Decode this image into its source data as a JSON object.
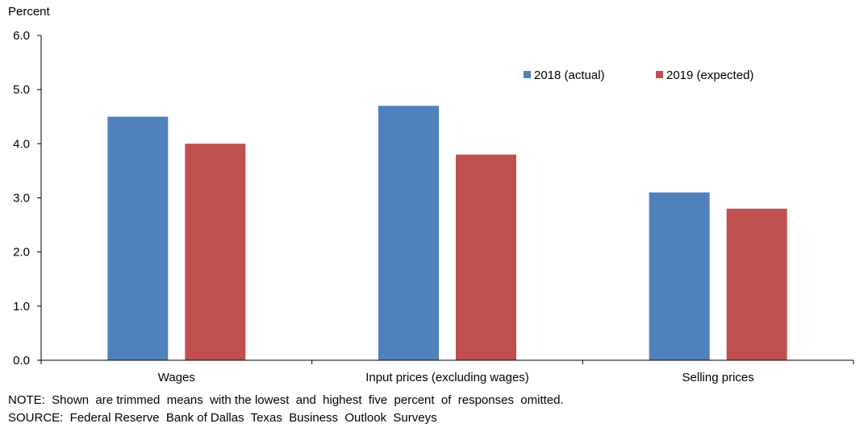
{
  "chart_data": {
    "type": "bar",
    "ylabel": "Percent",
    "ylim": [
      0,
      6
    ],
    "yticks": [
      "0.0",
      "1.0",
      "2.0",
      "3.0",
      "4.0",
      "5.0",
      "6.0"
    ],
    "categories": [
      "Wages",
      "Input prices (excluding wages)",
      "Selling prices"
    ],
    "series": [
      {
        "name": "2018 (actual)",
        "color": "#4f81bd",
        "values": [
          4.5,
          4.7,
          3.1
        ]
      },
      {
        "name": "2019 (expected)",
        "color": "#c0504d",
        "values": [
          4.0,
          3.8,
          2.8
        ]
      }
    ],
    "legend_position": "top-right",
    "grid": false
  },
  "notes": {
    "note": "NOTE:  Shown  are trimmed  means  with the lowest  and  highest  five  percent  of  responses  omitted.",
    "source": "SOURCE:  Federal Reserve  Bank of Dallas  Texas  Business  Outlook  Surveys"
  }
}
